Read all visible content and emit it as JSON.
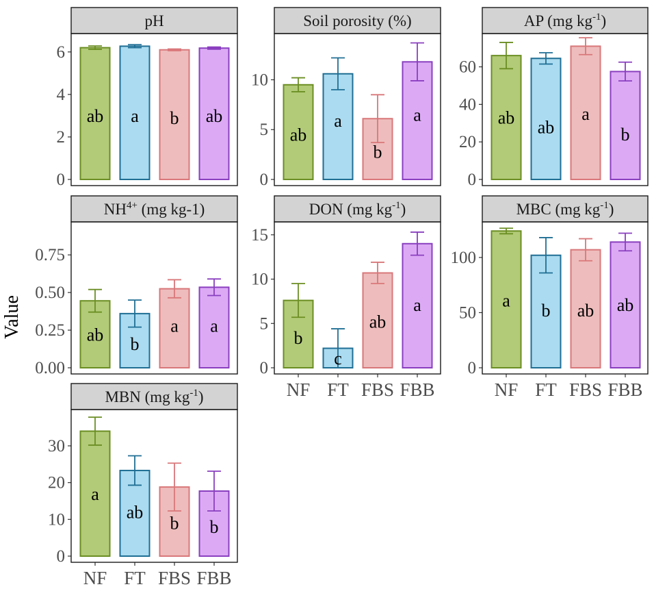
{
  "chart_data": {
    "type": "bar",
    "ylabel": "Value",
    "categories": [
      "NF",
      "FT",
      "FBS",
      "FBB"
    ],
    "colors": {
      "NF": {
        "fill": "#b2cb78",
        "stroke": "#6b8e23"
      },
      "FT": {
        "fill": "#abdbf0",
        "stroke": "#1f6e94"
      },
      "FBS": {
        "fill": "#eebcbc",
        "stroke": "#d9777a"
      },
      "FBB": {
        "fill": "#dcaaf5",
        "stroke": "#8a3fbf"
      }
    },
    "panels": [
      {
        "title": "pH",
        "title_sup": "",
        "title_unit": "",
        "ylim": [
          0,
          6.8
        ],
        "yticks": [
          0,
          2,
          4,
          6
        ],
        "tick_labels": [
          "0",
          "2",
          "4",
          "6"
        ],
        "values": [
          6.2,
          6.27,
          6.1,
          6.18
        ],
        "errors": [
          0.08,
          0.07,
          0.04,
          0.05
        ],
        "letters": [
          "ab",
          "a",
          "b",
          "ab"
        ],
        "letter_y": [
          3.0,
          3.0,
          2.9,
          3.0
        ]
      },
      {
        "title": "Soil porosity (%)",
        "title_sup": "",
        "title_unit": "",
        "ylim": [
          0,
          14.5
        ],
        "yticks": [
          0,
          5,
          10
        ],
        "tick_labels": [
          "0",
          "5",
          "10"
        ],
        "values": [
          9.5,
          10.6,
          6.1,
          11.8
        ],
        "errors": [
          0.7,
          1.6,
          2.4,
          1.9
        ],
        "letters": [
          "ab",
          "a",
          "b",
          "a"
        ],
        "letter_y": [
          4.5,
          5.9,
          2.8,
          6.5
        ]
      },
      {
        "title": "AP (mg kg",
        "title_sup": "-1",
        "title_unit": ")",
        "ylim": [
          0,
          77
        ],
        "yticks": [
          0,
          20,
          40,
          60
        ],
        "tick_labels": [
          "0",
          "20",
          "40",
          "60"
        ],
        "values": [
          66,
          64.5,
          71,
          57.5
        ],
        "errors": [
          7,
          3,
          4.5,
          5
        ],
        "letters": [
          "ab",
          "ab",
          "a",
          "b"
        ],
        "letter_y": [
          33,
          28,
          35,
          24
        ]
      },
      {
        "title": "NH",
        "title_sup": "4+",
        "title_unit": " (mg kg-1)",
        "ylim": [
          0,
          0.96
        ],
        "yticks": [
          0,
          0.25,
          0.5,
          0.75
        ],
        "tick_labels": [
          "0.00",
          "0.25",
          "0.50",
          "0.75"
        ],
        "values": [
          0.445,
          0.36,
          0.525,
          0.535
        ],
        "errors": [
          0.075,
          0.09,
          0.06,
          0.055
        ],
        "letters": [
          "ab",
          "b",
          "a",
          "a"
        ],
        "letter_y": [
          0.22,
          0.16,
          0.28,
          0.28
        ]
      },
      {
        "title": "DON (mg kg",
        "title_sup": "-1",
        "title_unit": ")",
        "ylim": [
          0,
          16.3
        ],
        "yticks": [
          0,
          5,
          10,
          15
        ],
        "tick_labels": [
          "0",
          "5",
          "10",
          "15"
        ],
        "values": [
          7.6,
          2.2,
          10.7,
          14
        ],
        "errors": [
          1.9,
          2.2,
          1.2,
          1.3
        ],
        "letters": [
          "b",
          "c",
          "ab",
          "a"
        ],
        "letter_y": [
          3.4,
          1.1,
          5.2,
          7.1
        ]
      },
      {
        "title": "MBC (mg kg",
        "title_sup": "-1",
        "title_unit": ")",
        "ylim": [
          0,
          131
        ],
        "yticks": [
          0,
          50,
          100
        ],
        "tick_labels": [
          "0",
          "50",
          "100"
        ],
        "values": [
          124,
          102,
          107,
          114
        ],
        "errors": [
          2.5,
          16,
          10,
          8
        ],
        "letters": [
          "a",
          "b",
          "ab",
          "ab"
        ],
        "letter_y": [
          61,
          52,
          52,
          57
        ]
      },
      {
        "title": "MBN (mg kg",
        "title_sup": "-1",
        "title_unit": ")",
        "ylim": [
          0,
          39.5
        ],
        "yticks": [
          0,
          10,
          20,
          30
        ],
        "tick_labels": [
          "0",
          "10",
          "20",
          "30"
        ],
        "values": [
          34,
          23.3,
          18.8,
          17.7
        ],
        "errors": [
          3.8,
          4,
          6.5,
          5.4
        ],
        "letters": [
          "a",
          "ab",
          "b",
          "b"
        ],
        "letter_y": [
          17,
          12,
          9,
          8
        ]
      }
    ]
  }
}
